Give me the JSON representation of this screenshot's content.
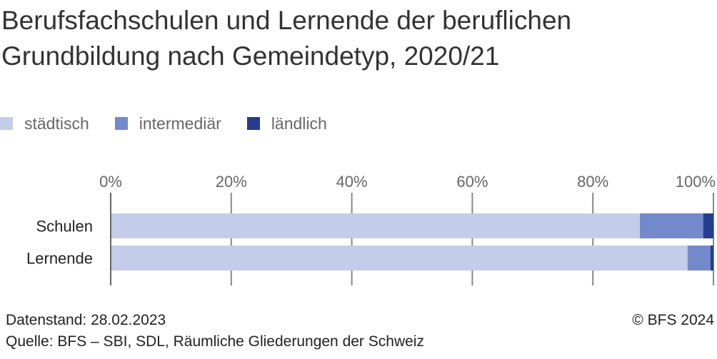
{
  "title": "Berufsfachschulen und Lernende der beruflichen Grundbildung nach Gemeindetyp, 2020/21",
  "footer": {
    "datenstand": "Datenstand: 28.02.2023",
    "quelle": "Quelle: BFS – SBI, SDL, Räumliche Gliederungen der Schweiz",
    "copyright": "© BFS 2024"
  },
  "colors": {
    "städtisch": "#c3cdea",
    "intermediär": "#7389cb",
    "ländlich": "#263c8f",
    "gridline": "#888888",
    "tick_text": "#666666"
  },
  "chart_data": {
    "type": "bar",
    "orientation": "horizontal",
    "stacked": true,
    "percent": true,
    "categories": [
      "Schulen",
      "Lernende"
    ],
    "series": [
      {
        "name": "städtisch",
        "values": [
          87.8,
          95.7
        ]
      },
      {
        "name": "intermediär",
        "values": [
          10.5,
          3.8
        ]
      },
      {
        "name": "ländlich",
        "values": [
          1.7,
          0.5
        ]
      }
    ],
    "xlim": [
      0,
      100
    ],
    "xticks": [
      "0%",
      "20%",
      "40%",
      "60%",
      "80%",
      "100%"
    ],
    "grid": true,
    "legend": "top-left"
  }
}
